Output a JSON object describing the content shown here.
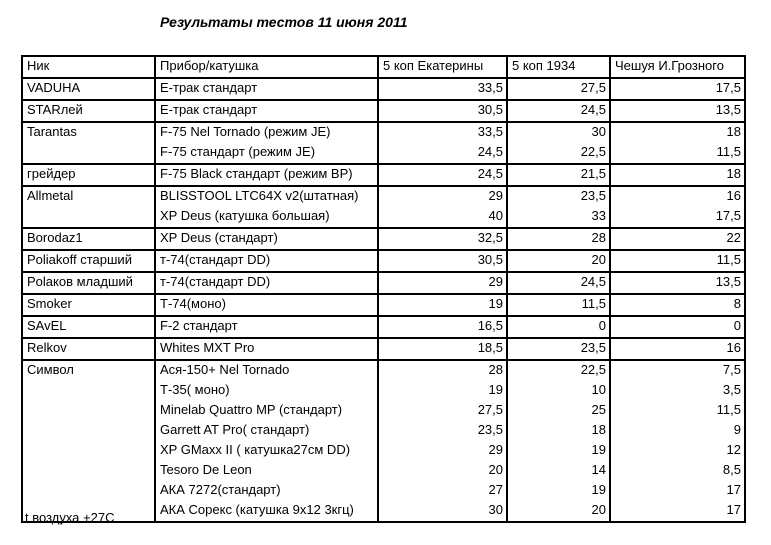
{
  "page": {
    "title": "Результаты тестов 11 июня 2011",
    "footer": "t воздуха +27С"
  },
  "colors": {
    "text": "#000000",
    "border": "#000000",
    "background": "#ffffff"
  },
  "table": {
    "columns": [
      "Ник",
      "Прибор/катушка",
      "5 коп Екатерины",
      "5 коп 1934",
      "Чешуя И.Грозного"
    ],
    "groups": [
      {
        "nick": "VADUHA",
        "rows": [
          {
            "device": "Е-трак стандарт",
            "values": [
              "33,5",
              "27,5",
              "17,5"
            ]
          }
        ]
      },
      {
        "nick": "STARлей",
        "rows": [
          {
            "device": "Е-трак стандарт",
            "values": [
              "30,5",
              "24,5",
              "13,5"
            ]
          }
        ]
      },
      {
        "nick": "Tarantas",
        "rows": [
          {
            "device": "F-75 Nel Tornado (режим JE)",
            "values": [
              "33,5",
              "30",
              "18"
            ]
          },
          {
            "device": "F-75 стандарт (режим JE)",
            "values": [
              "24,5",
              "22,5",
              "11,5"
            ]
          }
        ]
      },
      {
        "nick": "грейдер",
        "rows": [
          {
            "device": "F-75 Black стандарт (режим BP)",
            "values": [
              "24,5",
              "21,5",
              "18"
            ]
          }
        ]
      },
      {
        "nick": "Allmetal",
        "rows": [
          {
            "device": "BLISSTOOL LTC64X v2(штатная)",
            "values": [
              "29",
              "23,5",
              "16"
            ]
          },
          {
            "device": "XP Deus (катушка большая)",
            "values": [
              "40",
              "33",
              "17,5"
            ]
          }
        ]
      },
      {
        "nick": "Borodaz1",
        "rows": [
          {
            "device": "XP Deus (стандарт)",
            "values": [
              "32,5",
              "28",
              "22"
            ]
          }
        ]
      },
      {
        "nick": "Poliakoff старший",
        "rows": [
          {
            "device": "т-74(стандарт DD)",
            "values": [
              "30,5",
              "20",
              "11,5"
            ]
          }
        ]
      },
      {
        "nick": "Polaков младший",
        "rows": [
          {
            "device": "т-74(стандарт DD)",
            "values": [
              "29",
              "24,5",
              "13,5"
            ]
          }
        ]
      },
      {
        "nick": "Smoker",
        "rows": [
          {
            "device": "Т-74(моно)",
            "values": [
              "19",
              "11,5",
              "8"
            ]
          }
        ]
      },
      {
        "nick": "SAvEL",
        "rows": [
          {
            "device": "F-2 стандарт",
            "values": [
              "16,5",
              "0",
              "0"
            ]
          }
        ]
      },
      {
        "nick": "Relkov",
        "rows": [
          {
            "device": "Whites MXT Pro",
            "values": [
              "18,5",
              "23,5",
              "16"
            ]
          }
        ]
      },
      {
        "nick": "Символ",
        "rows": [
          {
            "device": "Ася-150+ Nel Tornado",
            "values": [
              "28",
              "22,5",
              "7,5"
            ]
          },
          {
            "device": "Т-35( моно)",
            "values": [
              "19",
              "10",
              "3,5"
            ]
          },
          {
            "device": "Minelab Quattro MP (стандарт)",
            "values": [
              "27,5",
              "25",
              "11,5"
            ]
          },
          {
            "device": "Garrett AT Pro( стандарт)",
            "values": [
              "23,5",
              "18",
              "9"
            ]
          },
          {
            "device": "XP GMaxx II ( катушка27см DD)",
            "values": [
              "29",
              "19",
              "12"
            ]
          },
          {
            "device": "Tesoro De Leon",
            "values": [
              "20",
              "14",
              "8,5"
            ]
          },
          {
            "device": "АКА 7272(стандарт)",
            "values": [
              "27",
              "19",
              "17"
            ]
          },
          {
            "device": "АКА Сорекс (катушка 9х12 3кгц)",
            "values": [
              "30",
              "20",
              "17"
            ]
          }
        ]
      }
    ]
  }
}
